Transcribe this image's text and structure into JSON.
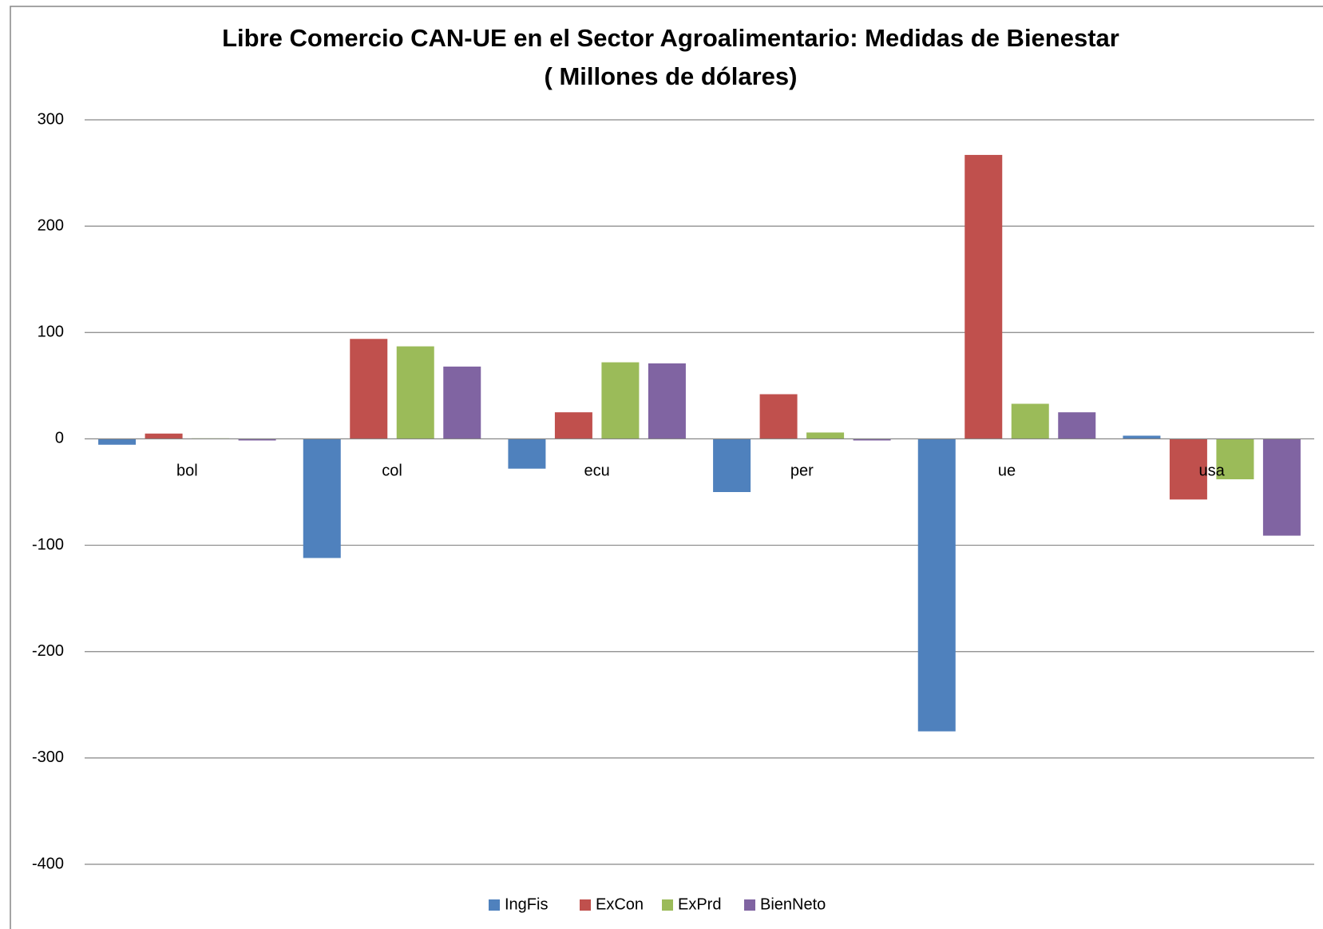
{
  "chart_data": {
    "type": "bar",
    "title": "Libre Comercio CAN-UE en el Sector Agroalimentario:  Medidas de Bienestar",
    "subtitle": "( Millones  de dólares)",
    "categories": [
      "bol",
      "col",
      "ecu",
      "per",
      "ue",
      "usa"
    ],
    "series": [
      {
        "name": "IngFis",
        "color": "#4f81bd",
        "values": [
          -5.5,
          -112,
          -28,
          -50,
          -275,
          3
        ]
      },
      {
        "name": "ExCon",
        "color": "#c0504d",
        "values": [
          5,
          94,
          25,
          42,
          267,
          -57
        ]
      },
      {
        "name": "ExPrd",
        "color": "#9bbb59",
        "values": [
          0.5,
          87,
          72,
          6,
          33,
          -38
        ]
      },
      {
        "name": "BienNeto",
        "color": "#8064a2",
        "values": [
          -1.5,
          68,
          71,
          -1.5,
          25,
          -91
        ]
      }
    ],
    "ylim": [
      -400,
      300
    ],
    "yticks": [
      -400,
      -300,
      -200,
      -100,
      0,
      100,
      200,
      300
    ],
    "grid": true,
    "legend": "bottom"
  }
}
